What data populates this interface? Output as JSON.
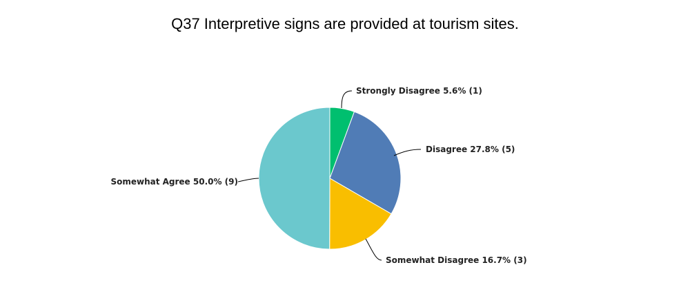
{
  "chart_data": {
    "type": "pie",
    "title": "Q37 Interpretive signs are provided at tourism sites.",
    "slices": [
      {
        "label": "Strongly Disagree",
        "percent": 5.6,
        "count": 1,
        "display": "Strongly Disagree 5.6% (1)",
        "color": "#00BF6F"
      },
      {
        "label": "Disagree",
        "percent": 27.8,
        "count": 5,
        "display": "Disagree 27.8% (5)",
        "color": "#507CB6"
      },
      {
        "label": "Somewhat Disagree",
        "percent": 16.7,
        "count": 3,
        "display": "Somewhat Disagree 16.7% (3)",
        "color": "#F9BE00"
      },
      {
        "label": "Somewhat Agree",
        "percent": 50.0,
        "count": 9,
        "display": "Somewhat Agree 50.0% (9)",
        "color": "#6BC8CD"
      }
    ],
    "legend": "none"
  }
}
